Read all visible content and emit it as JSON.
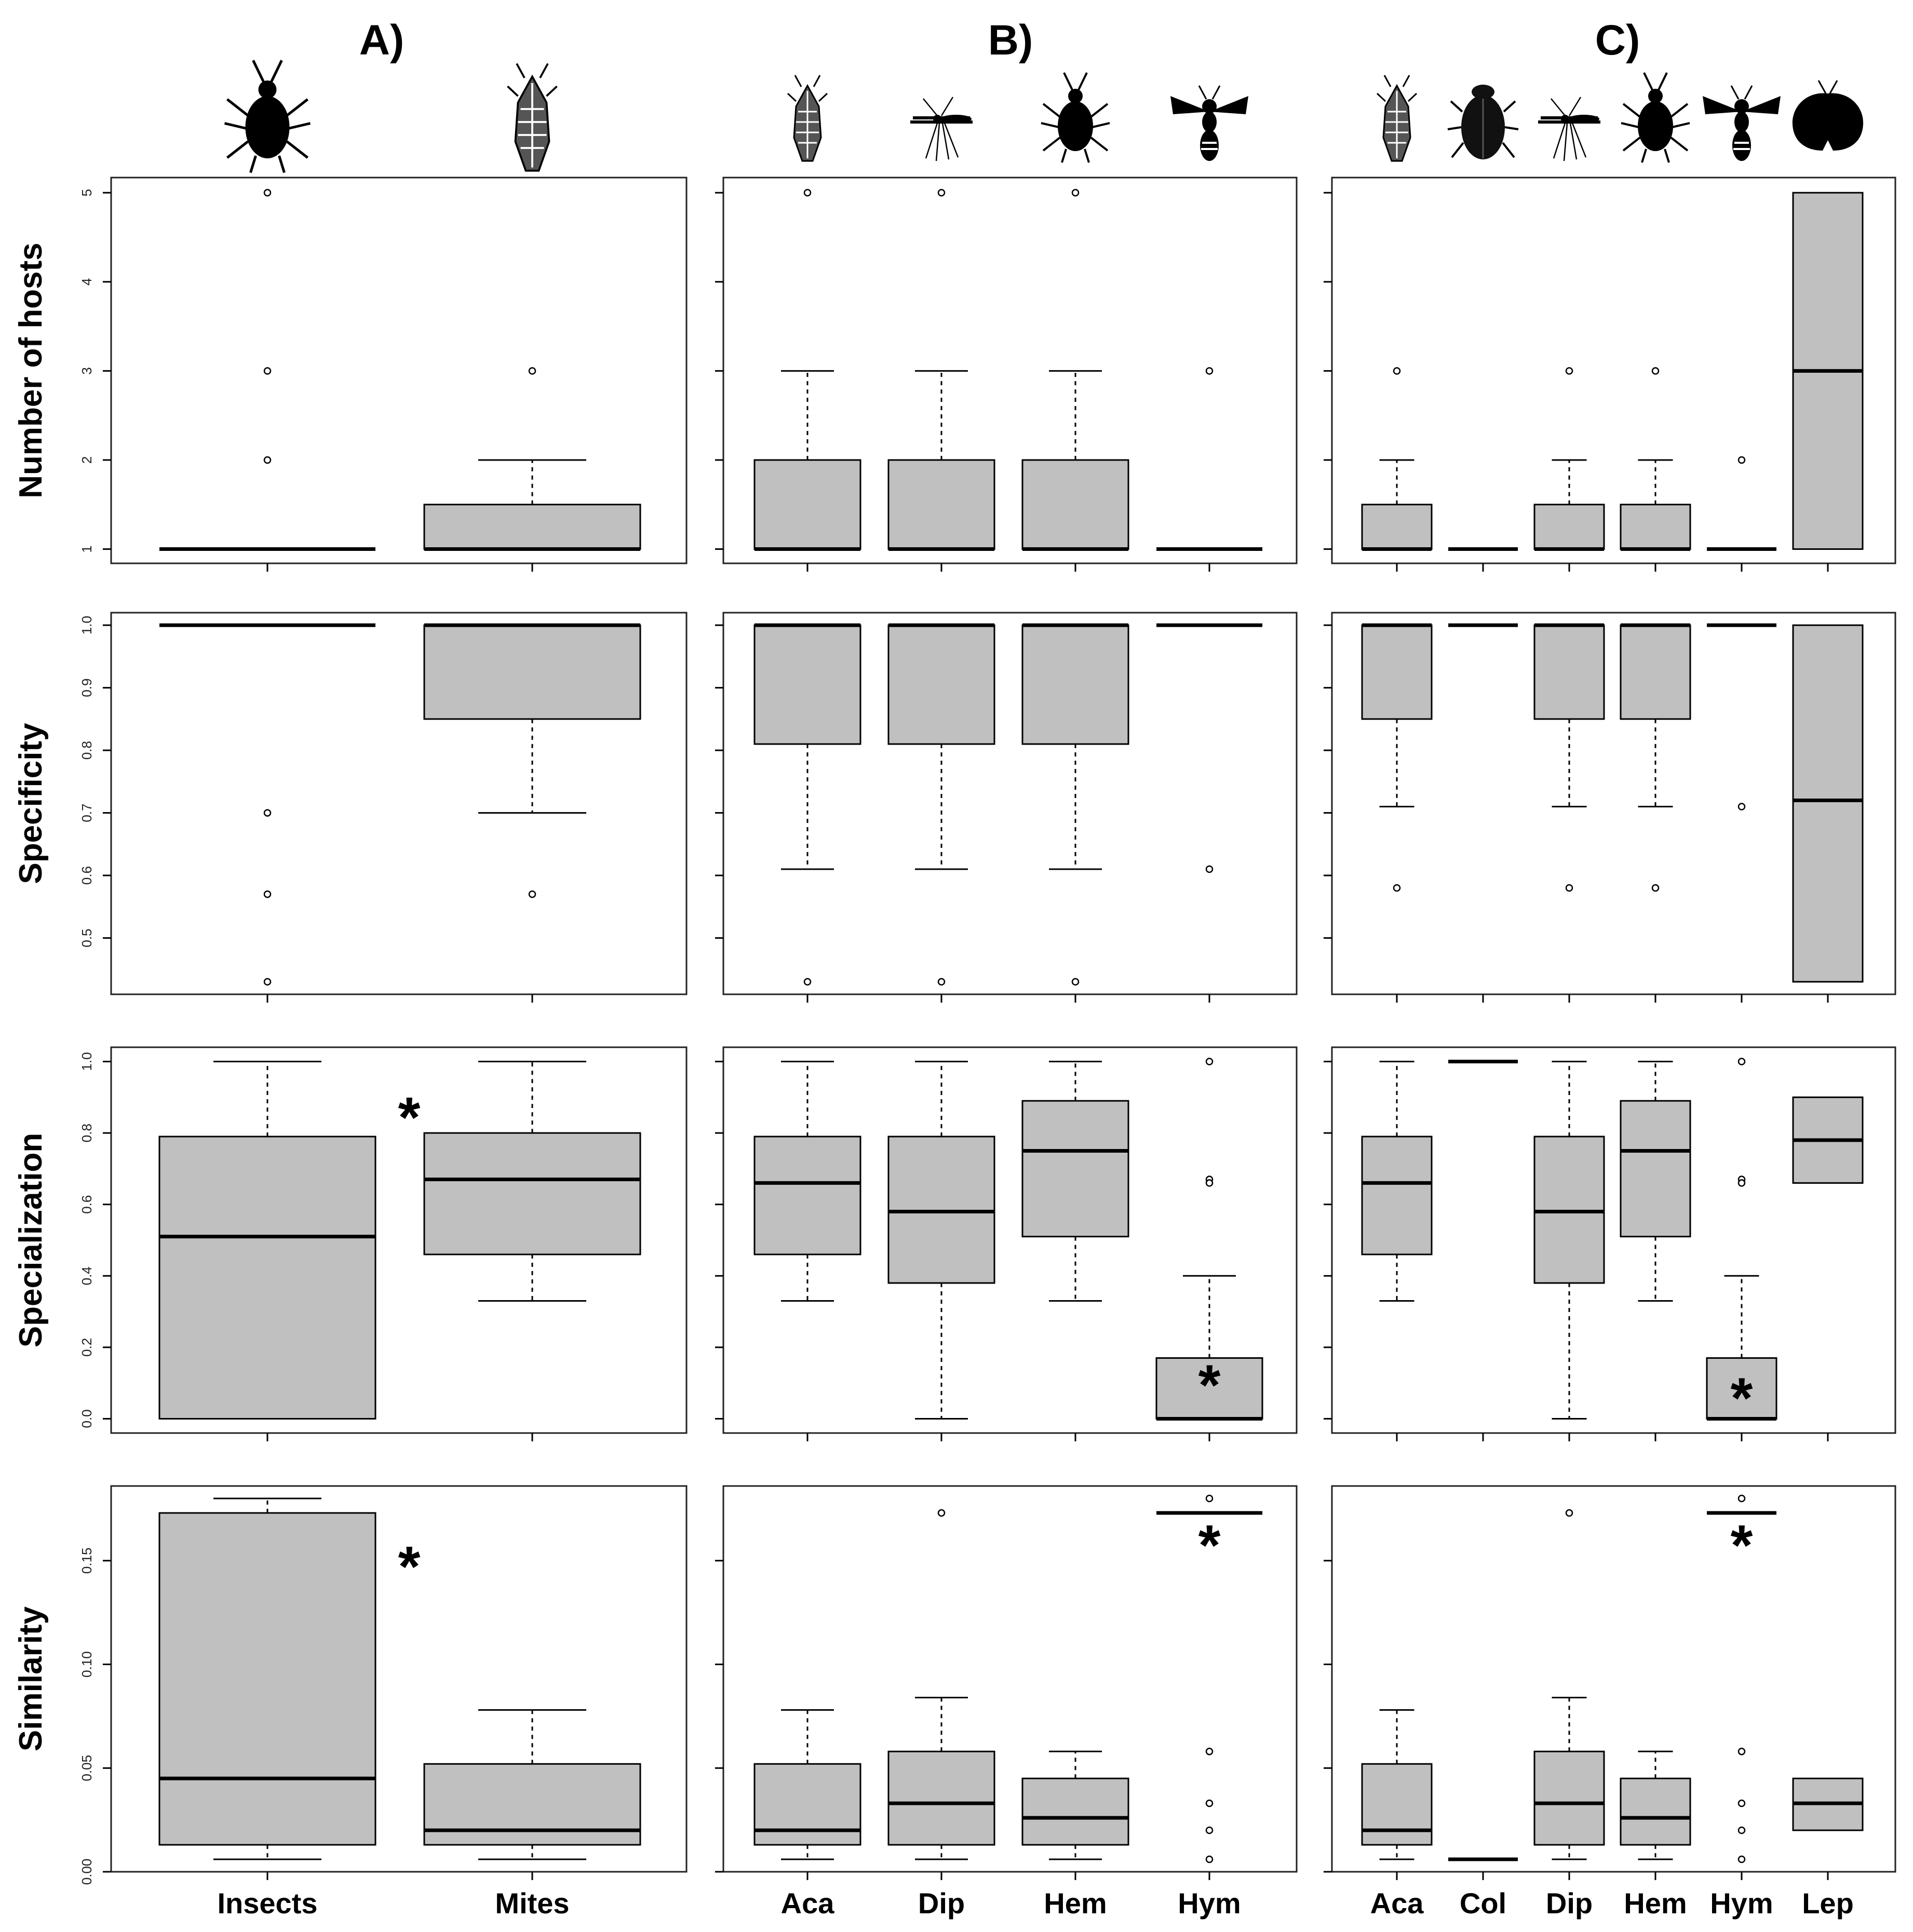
{
  "columns": [
    {
      "title": "A)",
      "categories": [
        "Insects",
        "Mites"
      ],
      "icons": [
        "aphid-icon",
        "mite-icon"
      ]
    },
    {
      "title": "B)",
      "categories": [
        "Aca",
        "Dip",
        "Hem",
        "Hym"
      ],
      "icons": [
        "mite-icon",
        "mosquito-icon",
        "aphid-icon",
        "wasp-icon"
      ]
    },
    {
      "title": "C)",
      "categories": [
        "Aca",
        "Col",
        "Dip",
        "Hem",
        "Hym",
        "Lep"
      ],
      "icons": [
        "mite-icon",
        "beetle-icon",
        "mosquito-icon",
        "aphid-icon",
        "wasp-icon",
        "moth-icon"
      ]
    }
  ],
  "rows": [
    {
      "ylabel": "Number of hosts",
      "ylim": [
        0.84,
        5.17
      ],
      "ticks": [
        1,
        2,
        3,
        4,
        5
      ],
      "tick_labels": [
        "1",
        "2",
        "3",
        "4",
        "5"
      ],
      "show_tick_labels": [
        true,
        false,
        false
      ]
    },
    {
      "ylabel": "Specificity",
      "ylim": [
        0.41,
        1.02
      ],
      "ticks": [
        0.5,
        0.6,
        0.7,
        0.8,
        0.9,
        1.0
      ],
      "tick_labels": [
        "0.5",
        "0.6",
        "0.7",
        "0.8",
        "0.9",
        "1.0"
      ],
      "show_tick_labels": [
        true,
        false,
        false
      ]
    },
    {
      "ylabel": "Specialization",
      "ylim": [
        -0.04,
        1.04
      ],
      "ticks": [
        0.0,
        0.2,
        0.4,
        0.6,
        0.8,
        1.0
      ],
      "tick_labels": [
        "0.0",
        "0.2",
        "0.4",
        "0.6",
        "0.8",
        "1.0"
      ],
      "show_tick_labels": [
        true,
        false,
        false
      ]
    },
    {
      "ylabel": "Similarity",
      "ylim": [
        0.0,
        0.186
      ],
      "ticks": [
        0.0,
        0.05,
        0.1,
        0.15
      ],
      "tick_labels": [
        "0.00",
        "0.05",
        "0.10",
        "0.15"
      ],
      "show_tick_labels": [
        true,
        false,
        false
      ]
    }
  ],
  "chart_data": [
    {
      "type": "boxplot",
      "panel": "A",
      "ylabel": "Number of hosts",
      "categories": [
        "Insects",
        "Mites"
      ],
      "boxes": [
        {
          "q1": 1,
          "median": 1,
          "q3": 1,
          "whisker_low": 1,
          "whisker_high": 1,
          "outliers": [
            2,
            3,
            5
          ]
        },
        {
          "q1": 1,
          "median": 1,
          "q3": 1.5,
          "whisker_low": 1,
          "whisker_high": 2,
          "outliers": [
            3
          ]
        }
      ]
    },
    {
      "type": "boxplot",
      "panel": "B",
      "ylabel": "Number of hosts",
      "categories": [
        "Aca",
        "Dip",
        "Hem",
        "Hym"
      ],
      "boxes": [
        {
          "q1": 1,
          "median": 1,
          "q3": 2,
          "whisker_low": 1,
          "whisker_high": 3,
          "outliers": [
            5
          ]
        },
        {
          "q1": 1,
          "median": 1,
          "q3": 2,
          "whisker_low": 1,
          "whisker_high": 3,
          "outliers": [
            5
          ]
        },
        {
          "q1": 1,
          "median": 1,
          "q3": 2,
          "whisker_low": 1,
          "whisker_high": 3,
          "outliers": [
            5
          ]
        },
        {
          "q1": 1,
          "median": 1,
          "q3": 1,
          "whisker_low": 1,
          "whisker_high": 1,
          "outliers": [
            3
          ]
        }
      ]
    },
    {
      "type": "boxplot",
      "panel": "C",
      "ylabel": "Number of hosts",
      "categories": [
        "Aca",
        "Col",
        "Dip",
        "Hem",
        "Hym",
        "Lep"
      ],
      "boxes": [
        {
          "q1": 1,
          "median": 1,
          "q3": 1.5,
          "whisker_low": 1,
          "whisker_high": 2,
          "outliers": [
            3
          ]
        },
        {
          "q1": 1,
          "median": 1,
          "q3": 1,
          "whisker_low": 1,
          "whisker_high": 1,
          "outliers": []
        },
        {
          "q1": 1,
          "median": 1,
          "q3": 1.5,
          "whisker_low": 1,
          "whisker_high": 2,
          "outliers": [
            3
          ]
        },
        {
          "q1": 1,
          "median": 1,
          "q3": 1.5,
          "whisker_low": 1,
          "whisker_high": 2,
          "outliers": [
            3
          ]
        },
        {
          "q1": 1,
          "median": 1,
          "q3": 1,
          "whisker_low": 1,
          "whisker_high": 1,
          "outliers": [
            2
          ]
        },
        {
          "q1": 1,
          "median": 3,
          "q3": 5,
          "whisker_low": 1,
          "whisker_high": 5,
          "outliers": []
        }
      ]
    },
    {
      "type": "boxplot",
      "panel": "A",
      "ylabel": "Specificity",
      "categories": [
        "Insects",
        "Mites"
      ],
      "boxes": [
        {
          "q1": 1.0,
          "median": 1.0,
          "q3": 1.0,
          "whisker_low": 1.0,
          "whisker_high": 1.0,
          "outliers": [
            0.7,
            0.57,
            0.43
          ]
        },
        {
          "q1": 0.85,
          "median": 1.0,
          "q3": 1.0,
          "whisker_low": 0.7,
          "whisker_high": 1.0,
          "outliers": [
            0.57
          ]
        }
      ]
    },
    {
      "type": "boxplot",
      "panel": "B",
      "ylabel": "Specificity",
      "categories": [
        "Aca",
        "Dip",
        "Hem",
        "Hym"
      ],
      "boxes": [
        {
          "q1": 0.81,
          "median": 1.0,
          "q3": 1.0,
          "whisker_low": 0.61,
          "whisker_high": 1.0,
          "outliers": [
            0.43
          ]
        },
        {
          "q1": 0.81,
          "median": 1.0,
          "q3": 1.0,
          "whisker_low": 0.61,
          "whisker_high": 1.0,
          "outliers": [
            0.43
          ]
        },
        {
          "q1": 0.81,
          "median": 1.0,
          "q3": 1.0,
          "whisker_low": 0.61,
          "whisker_high": 1.0,
          "outliers": [
            0.43
          ]
        },
        {
          "q1": 1.0,
          "median": 1.0,
          "q3": 1.0,
          "whisker_low": 1.0,
          "whisker_high": 1.0,
          "outliers": [
            0.61
          ]
        }
      ]
    },
    {
      "type": "boxplot",
      "panel": "C",
      "ylabel": "Specificity",
      "categories": [
        "Aca",
        "Col",
        "Dip",
        "Hem",
        "Hym",
        "Lep"
      ],
      "boxes": [
        {
          "q1": 0.85,
          "median": 1.0,
          "q3": 1.0,
          "whisker_low": 0.71,
          "whisker_high": 1.0,
          "outliers": [
            0.58
          ]
        },
        {
          "q1": 1.0,
          "median": 1.0,
          "q3": 1.0,
          "whisker_low": 1.0,
          "whisker_high": 1.0,
          "outliers": []
        },
        {
          "q1": 0.85,
          "median": 1.0,
          "q3": 1.0,
          "whisker_low": 0.71,
          "whisker_high": 1.0,
          "outliers": [
            0.58
          ]
        },
        {
          "q1": 0.85,
          "median": 1.0,
          "q3": 1.0,
          "whisker_low": 0.71,
          "whisker_high": 1.0,
          "outliers": [
            0.58
          ]
        },
        {
          "q1": 1.0,
          "median": 1.0,
          "q3": 1.0,
          "whisker_low": 1.0,
          "whisker_high": 1.0,
          "outliers": [
            0.71
          ]
        },
        {
          "q1": 0.43,
          "median": 0.72,
          "q3": 1.0,
          "whisker_low": 0.43,
          "whisker_high": 1.0,
          "outliers": []
        }
      ]
    },
    {
      "type": "boxplot",
      "panel": "A",
      "ylabel": "Specialization",
      "categories": [
        "Insects",
        "Mites"
      ],
      "annotation": "*",
      "boxes": [
        {
          "q1": 0.0,
          "median": 0.51,
          "q3": 0.79,
          "whisker_low": 0.0,
          "whisker_high": 1.0,
          "outliers": []
        },
        {
          "q1": 0.46,
          "median": 0.67,
          "q3": 0.8,
          "whisker_low": 0.33,
          "whisker_high": 1.0,
          "outliers": []
        }
      ]
    },
    {
      "type": "boxplot",
      "panel": "B",
      "ylabel": "Specialization",
      "categories": [
        "Aca",
        "Dip",
        "Hem",
        "Hym"
      ],
      "annotation": "*",
      "annotation_category": "Hym",
      "boxes": [
        {
          "q1": 0.46,
          "median": 0.66,
          "q3": 0.79,
          "whisker_low": 0.33,
          "whisker_high": 1.0,
          "outliers": []
        },
        {
          "q1": 0.38,
          "median": 0.58,
          "q3": 0.79,
          "whisker_low": 0.0,
          "whisker_high": 1.0,
          "outliers": []
        },
        {
          "q1": 0.51,
          "median": 0.75,
          "q3": 0.89,
          "whisker_low": 0.33,
          "whisker_high": 1.0,
          "outliers": []
        },
        {
          "q1": 0.0,
          "median": 0.0,
          "q3": 0.17,
          "whisker_low": 0.0,
          "whisker_high": 0.4,
          "outliers": [
            0.67,
            0.66,
            1.0
          ]
        }
      ]
    },
    {
      "type": "boxplot",
      "panel": "C",
      "ylabel": "Specialization",
      "categories": [
        "Aca",
        "Col",
        "Dip",
        "Hem",
        "Hym",
        "Lep"
      ],
      "annotation": "*",
      "annotation_category": "Hym",
      "boxes": [
        {
          "q1": 0.46,
          "median": 0.66,
          "q3": 0.79,
          "whisker_low": 0.33,
          "whisker_high": 1.0,
          "outliers": []
        },
        {
          "q1": 1.0,
          "median": 1.0,
          "q3": 1.0,
          "whisker_low": 1.0,
          "whisker_high": 1.0,
          "outliers": []
        },
        {
          "q1": 0.38,
          "median": 0.58,
          "q3": 0.79,
          "whisker_low": 0.0,
          "whisker_high": 1.0,
          "outliers": []
        },
        {
          "q1": 0.51,
          "median": 0.75,
          "q3": 0.89,
          "whisker_low": 0.33,
          "whisker_high": 1.0,
          "outliers": []
        },
        {
          "q1": 0.0,
          "median": 0.0,
          "q3": 0.17,
          "whisker_low": 0.0,
          "whisker_high": 0.4,
          "outliers": [
            0.67,
            0.66,
            1.0
          ]
        },
        {
          "q1": 0.66,
          "median": 0.78,
          "q3": 0.9,
          "whisker_low": 0.66,
          "whisker_high": 0.9,
          "outliers": []
        }
      ]
    },
    {
      "type": "boxplot",
      "panel": "A",
      "ylabel": "Similarity",
      "categories": [
        "Insects",
        "Mites"
      ],
      "annotation": "*",
      "boxes": [
        {
          "q1": 0.013,
          "median": 0.045,
          "q3": 0.173,
          "whisker_low": 0.006,
          "whisker_high": 0.18,
          "outliers": []
        },
        {
          "q1": 0.013,
          "median": 0.02,
          "q3": 0.052,
          "whisker_low": 0.006,
          "whisker_high": 0.078,
          "outliers": []
        }
      ]
    },
    {
      "type": "boxplot",
      "panel": "B",
      "ylabel": "Similarity",
      "categories": [
        "Aca",
        "Dip",
        "Hem",
        "Hym"
      ],
      "annotation": "*",
      "annotation_category": "Hym",
      "boxes": [
        {
          "q1": 0.013,
          "median": 0.02,
          "q3": 0.052,
          "whisker_low": 0.006,
          "whisker_high": 0.078,
          "outliers": []
        },
        {
          "q1": 0.013,
          "median": 0.033,
          "q3": 0.058,
          "whisker_low": 0.006,
          "whisker_high": 0.084,
          "outliers": [
            0.173
          ]
        },
        {
          "q1": 0.013,
          "median": 0.026,
          "q3": 0.045,
          "whisker_low": 0.006,
          "whisker_high": 0.058,
          "outliers": []
        },
        {
          "q1": 0.173,
          "median": 0.173,
          "q3": 0.173,
          "whisker_low": 0.173,
          "whisker_high": 0.173,
          "outliers": [
            0.18,
            0.058,
            0.033,
            0.02,
            0.006
          ]
        }
      ]
    },
    {
      "type": "boxplot",
      "panel": "C",
      "ylabel": "Similarity",
      "categories": [
        "Aca",
        "Col",
        "Dip",
        "Hem",
        "Hym",
        "Lep"
      ],
      "annotation": "*",
      "annotation_category": "Hym",
      "boxes": [
        {
          "q1": 0.013,
          "median": 0.02,
          "q3": 0.052,
          "whisker_low": 0.006,
          "whisker_high": 0.078,
          "outliers": []
        },
        {
          "q1": 0.006,
          "median": 0.006,
          "q3": 0.006,
          "whisker_low": 0.006,
          "whisker_high": 0.006,
          "outliers": []
        },
        {
          "q1": 0.013,
          "median": 0.033,
          "q3": 0.058,
          "whisker_low": 0.006,
          "whisker_high": 0.084,
          "outliers": [
            0.173
          ]
        },
        {
          "q1": 0.013,
          "median": 0.026,
          "q3": 0.045,
          "whisker_low": 0.006,
          "whisker_high": 0.058,
          "outliers": []
        },
        {
          "q1": 0.173,
          "median": 0.173,
          "q3": 0.173,
          "whisker_low": 0.173,
          "whisker_high": 0.173,
          "outliers": [
            0.18,
            0.058,
            0.033,
            0.02,
            0.006
          ]
        },
        {
          "q1": 0.02,
          "median": 0.033,
          "q3": 0.045,
          "whisker_low": 0.02,
          "whisker_high": 0.045,
          "outliers": []
        }
      ]
    }
  ]
}
